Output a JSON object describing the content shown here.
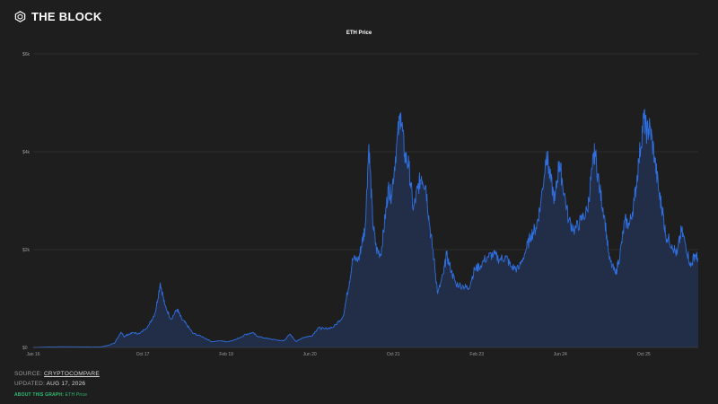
{
  "brand": {
    "name": "THE BLOCK",
    "logo_icon": "cube-logo-icon"
  },
  "chart_data": {
    "type": "area",
    "title": "ETH Price",
    "xlabel": "",
    "ylabel": "",
    "ylim": [
      0,
      6000
    ],
    "y_ticks": [
      {
        "value": 0,
        "label": "$0"
      },
      {
        "value": 2000,
        "label": "$2k"
      },
      {
        "value": 4000,
        "label": "$4k"
      },
      {
        "value": 6000,
        "label": "$6k"
      }
    ],
    "x_ticks": [
      {
        "value": 2016.0,
        "label": "Jan 16"
      },
      {
        "value": 2017.75,
        "label": "Oct 17"
      },
      {
        "value": 2019.083,
        "label": "Feb 19"
      },
      {
        "value": 2020.417,
        "label": "Jun 20"
      },
      {
        "value": 2021.75,
        "label": "Oct 21"
      },
      {
        "value": 2023.083,
        "label": "Feb 23"
      },
      {
        "value": 2024.417,
        "label": "Jun 24"
      },
      {
        "value": 2025.75,
        "label": "Oct 25"
      }
    ],
    "xlim": [
      2016.0,
      2026.62
    ],
    "grid": true,
    "line_color": "#2f6fe0",
    "fill_color": "#22304d",
    "series": [
      {
        "name": "ETH Price",
        "points": [
          [
            2016.0,
            1
          ],
          [
            2016.2,
            8
          ],
          [
            2016.45,
            14
          ],
          [
            2016.7,
            12
          ],
          [
            2016.95,
            8
          ],
          [
            2017.1,
            14
          ],
          [
            2017.2,
            45
          ],
          [
            2017.3,
            90
          ],
          [
            2017.4,
            310
          ],
          [
            2017.45,
            220
          ],
          [
            2017.5,
            260
          ],
          [
            2017.6,
            300
          ],
          [
            2017.7,
            280
          ],
          [
            2017.85,
            460
          ],
          [
            2017.95,
            720
          ],
          [
            2018.03,
            1320
          ],
          [
            2018.1,
            870
          ],
          [
            2018.2,
            580
          ],
          [
            2018.3,
            780
          ],
          [
            2018.37,
            580
          ],
          [
            2018.45,
            470
          ],
          [
            2018.55,
            290
          ],
          [
            2018.7,
            220
          ],
          [
            2018.85,
            120
          ],
          [
            2019.0,
            135
          ],
          [
            2019.1,
            115
          ],
          [
            2019.25,
            170
          ],
          [
            2019.4,
            270
          ],
          [
            2019.5,
            300
          ],
          [
            2019.6,
            220
          ],
          [
            2019.75,
            180
          ],
          [
            2019.9,
            150
          ],
          [
            2020.0,
            135
          ],
          [
            2020.1,
            270
          ],
          [
            2020.2,
            120
          ],
          [
            2020.3,
            200
          ],
          [
            2020.45,
            240
          ],
          [
            2020.55,
            400
          ],
          [
            2020.65,
            380
          ],
          [
            2020.8,
            420
          ],
          [
            2020.95,
            640
          ],
          [
            2021.05,
            1350
          ],
          [
            2021.1,
            1800
          ],
          [
            2021.2,
            1800
          ],
          [
            2021.25,
            2150
          ],
          [
            2021.3,
            2450
          ],
          [
            2021.36,
            4150
          ],
          [
            2021.42,
            2600
          ],
          [
            2021.48,
            2000
          ],
          [
            2021.55,
            1900
          ],
          [
            2021.62,
            2650
          ],
          [
            2021.67,
            3250
          ],
          [
            2021.72,
            3100
          ],
          [
            2021.8,
            4100
          ],
          [
            2021.87,
            4800
          ],
          [
            2021.93,
            3950
          ],
          [
            2022.0,
            3700
          ],
          [
            2022.07,
            2800
          ],
          [
            2022.14,
            3250
          ],
          [
            2022.2,
            3500
          ],
          [
            2022.27,
            3300
          ],
          [
            2022.33,
            2500
          ],
          [
            2022.4,
            1800
          ],
          [
            2022.46,
            1100
          ],
          [
            2022.55,
            1500
          ],
          [
            2022.6,
            1900
          ],
          [
            2022.68,
            1550
          ],
          [
            2022.75,
            1300
          ],
          [
            2022.87,
            1250
          ],
          [
            2022.95,
            1210
          ],
          [
            2023.05,
            1600
          ],
          [
            2023.12,
            1650
          ],
          [
            2023.25,
            1850
          ],
          [
            2023.35,
            1900
          ],
          [
            2023.45,
            1800
          ],
          [
            2023.55,
            1850
          ],
          [
            2023.63,
            1650
          ],
          [
            2023.75,
            1600
          ],
          [
            2023.87,
            2000
          ],
          [
            2023.95,
            2300
          ],
          [
            2024.03,
            2450
          ],
          [
            2024.1,
            2900
          ],
          [
            2024.2,
            4000
          ],
          [
            2024.25,
            3500
          ],
          [
            2024.33,
            3000
          ],
          [
            2024.4,
            3800
          ],
          [
            2024.45,
            3400
          ],
          [
            2024.55,
            2600
          ],
          [
            2024.65,
            2400
          ],
          [
            2024.75,
            2600
          ],
          [
            2024.85,
            2800
          ],
          [
            2024.93,
            3700
          ],
          [
            2024.97,
            4000
          ],
          [
            2025.05,
            3200
          ],
          [
            2025.12,
            2700
          ],
          [
            2025.2,
            1800
          ],
          [
            2025.3,
            1500
          ],
          [
            2025.37,
            1900
          ],
          [
            2025.45,
            2600
          ],
          [
            2025.52,
            2500
          ],
          [
            2025.6,
            3000
          ],
          [
            2025.67,
            3800
          ],
          [
            2025.75,
            4700
          ],
          [
            2025.8,
            4400
          ],
          [
            2025.85,
            4500
          ],
          [
            2025.92,
            3900
          ],
          [
            2026.0,
            3100
          ],
          [
            2026.05,
            2800
          ],
          [
            2026.1,
            2300
          ],
          [
            2026.2,
            2100
          ],
          [
            2026.28,
            1900
          ],
          [
            2026.35,
            2400
          ],
          [
            2026.42,
            2100
          ],
          [
            2026.5,
            1650
          ],
          [
            2026.56,
            1900
          ],
          [
            2026.62,
            1820
          ]
        ]
      }
    ]
  },
  "footer": {
    "source_label": "SOURCE:",
    "source_value": "CRYPTOCOMPARE",
    "updated_label": "UPDATED:",
    "updated_value": "AUG 17, 2026",
    "about_label": "ABOUT THIS GRAPH:",
    "about_value": "ETH Price"
  }
}
